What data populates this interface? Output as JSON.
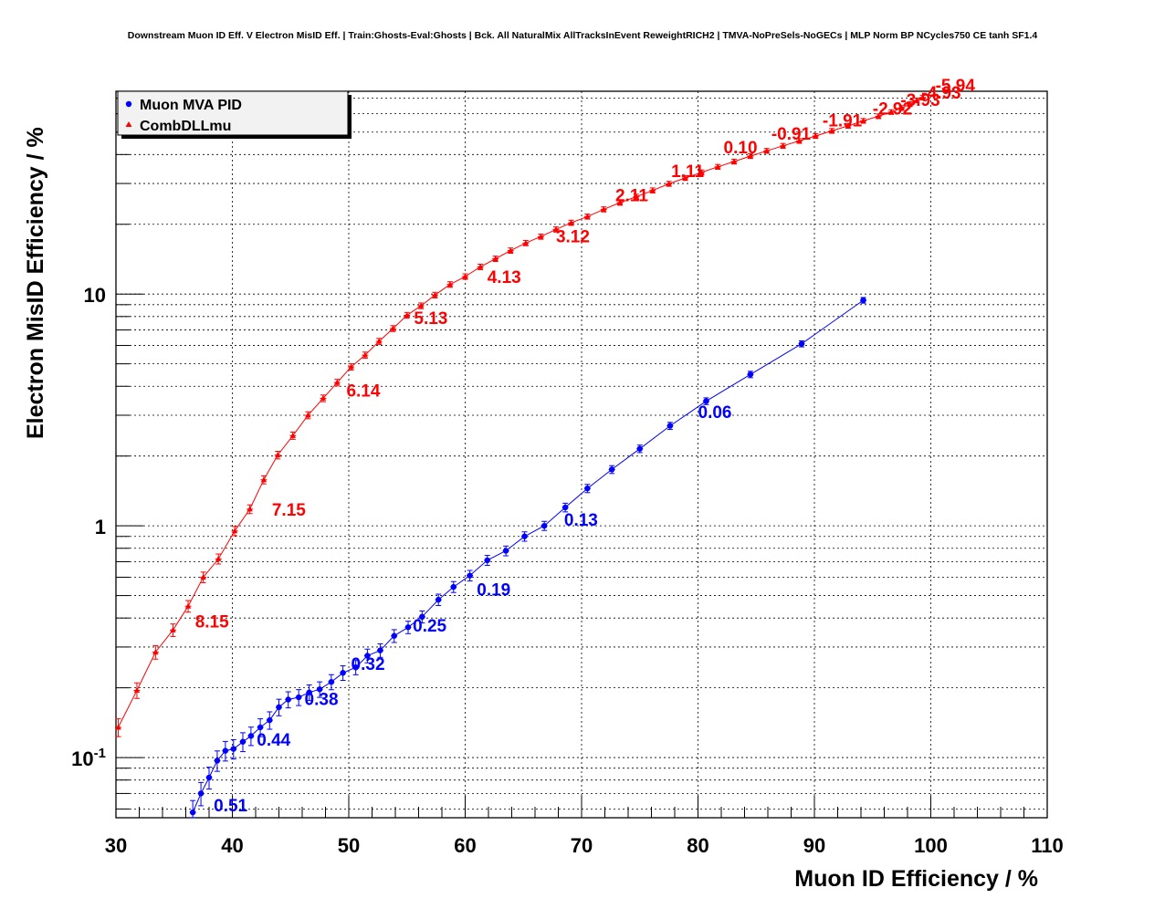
{
  "chart_data": {
    "type": "line",
    "title": "Downstream Muon ID Eff. V Electron MisID Eff. | Train:Ghosts-Eval:Ghosts | Bck. All NaturalMix AllTracksInEvent ReweightRICH2 | TMVA-NoPreSels-NoGECs | MLP Norm BP NCycles750 CE tanh SF1.4",
    "xlabel": "Muon ID Efficiency / %",
    "ylabel": "Electron MisID Efficiency / %",
    "xlim": [
      30,
      110
    ],
    "ylim": [
      0.055,
      75
    ],
    "y_scale": "log",
    "grid": true,
    "legend_position": "top-left",
    "x_ticks": [
      "30",
      "40",
      "50",
      "60",
      "70",
      "80",
      "90",
      "100",
      "110"
    ],
    "y_ticks": [
      {
        "value": 0.1,
        "base": "10",
        "exp": "-1"
      },
      {
        "value": 1,
        "base": "1",
        "exp": ""
      },
      {
        "value": 10,
        "base": "10",
        "exp": ""
      }
    ],
    "series": [
      {
        "name": "Muon MVA PID",
        "color": "#0000ff",
        "marker": "circle",
        "x": [
          35.3,
          36.0,
          36.6,
          37.3,
          38.0,
          38.7,
          39.4,
          40.1,
          40.9,
          41.6,
          42.4,
          43.2,
          44.0,
          44.8,
          45.7,
          46.6,
          47.5,
          48.5,
          49.5,
          50.6,
          51.6,
          52.7,
          53.9,
          55.1,
          56.3,
          57.7,
          59.0,
          60.4,
          61.9,
          63.5,
          65.1,
          66.8,
          68.6,
          70.5,
          72.6,
          75.0,
          77.6,
          80.7,
          84.5,
          88.9,
          94.2
        ],
        "y": [
          0.054,
          0.054,
          0.058,
          0.07,
          0.082,
          0.097,
          0.107,
          0.109,
          0.117,
          0.124,
          0.135,
          0.145,
          0.165,
          0.178,
          0.182,
          0.191,
          0.197,
          0.212,
          0.232,
          0.245,
          0.275,
          0.29,
          0.335,
          0.365,
          0.405,
          0.48,
          0.545,
          0.61,
          0.71,
          0.78,
          0.9,
          1.0,
          1.2,
          1.45,
          1.75,
          2.15,
          2.7,
          3.45,
          4.5,
          6.1,
          9.4
        ],
        "labels": [
          {
            "text": "0.51",
            "x": 38.4,
            "y": 0.0585
          },
          {
            "text": "0.44",
            "x": 42.1,
            "y": 0.1125
          },
          {
            "text": "0.38",
            "x": 46.2,
            "y": 0.1685
          },
          {
            "text": "0.32",
            "x": 50.2,
            "y": 0.2395
          },
          {
            "text": "0.25",
            "x": 55.5,
            "y": 0.3495
          },
          {
            "text": "0.19",
            "x": 61.0,
            "y": 0.4995
          },
          {
            "text": "0.13",
            "x": 68.5,
            "y": 1.0005
          },
          {
            "text": "0.06",
            "x": 80.0,
            "y": 2.915
          }
        ]
      },
      {
        "name": "CombDLLmu",
        "color": "#ff0000",
        "marker": "triangle",
        "x": [
          30.2,
          31.8,
          33.4,
          34.9,
          36.2,
          37.5,
          38.8,
          40.2,
          41.5,
          42.7,
          43.9,
          45.2,
          46.5,
          47.8,
          49.0,
          50.2,
          51.4,
          52.6,
          53.8,
          55.0,
          56.2,
          57.4,
          58.7,
          60.0,
          61.3,
          62.6,
          63.9,
          65.2,
          66.5,
          67.8,
          69.1,
          70.5,
          71.9,
          73.3,
          74.7,
          76.1,
          77.5,
          78.9,
          80.3,
          81.7,
          83.1,
          84.5,
          85.9,
          87.3,
          88.7,
          90.1,
          91.5,
          92.9,
          94.2,
          95.5,
          96.6,
          97.5,
          98.2,
          98.8,
          99.3
        ],
        "y": [
          0.135,
          0.195,
          0.285,
          0.355,
          0.45,
          0.6,
          0.72,
          0.95,
          1.18,
          1.58,
          2.02,
          2.45,
          3.0,
          3.55,
          4.15,
          4.85,
          5.45,
          6.25,
          7.1,
          8.1,
          8.9,
          9.9,
          11.0,
          11.9,
          13.1,
          14.2,
          15.4,
          16.6,
          17.7,
          19.0,
          20.3,
          21.6,
          23.2,
          24.8,
          26.3,
          28.0,
          29.9,
          31.7,
          33.5,
          35.4,
          37.3,
          39.4,
          41.5,
          43.6,
          45.8,
          48.1,
          50.6,
          53.2,
          55.9,
          58.5,
          61.0,
          63.5,
          66.0,
          68.5,
          70.5
        ],
        "labels": [
          {
            "text": "8.15",
            "x": 36.8,
            "y": 0.3645
          },
          {
            "text": "7.15",
            "x": 43.4,
            "y": 1.105
          },
          {
            "text": "6.14",
            "x": 49.8,
            "y": 3.605
          },
          {
            "text": "5.13",
            "x": 55.6,
            "y": 7.435
          },
          {
            "text": "4.13",
            "x": 61.9,
            "y": 11.18
          },
          {
            "text": "3.12",
            "x": 67.8,
            "y": 16.745
          },
          {
            "text": "2.11",
            "x": 72.9,
            "y": 25.15
          },
          {
            "text": "1.11",
            "x": 77.7,
            "y": 32.03
          },
          {
            "text": "0.10",
            "x": 82.2,
            "y": 40.515
          },
          {
            "text": "-0.91",
            "x": 86.3,
            "y": 46.345
          },
          {
            "text": "-1.91",
            "x": 90.7,
            "y": 52.985
          },
          {
            "text": "-2.92",
            "x": 95.0,
            "y": 59.435
          },
          {
            "text": "-3.93",
            "x": 97.4,
            "y": 64.745
          },
          {
            "text": "-4.93",
            "x": 99.2,
            "y": 69.885
          },
          {
            "text": "-5.94",
            "x": 100.4,
            "y": 75.045
          }
        ]
      }
    ]
  }
}
